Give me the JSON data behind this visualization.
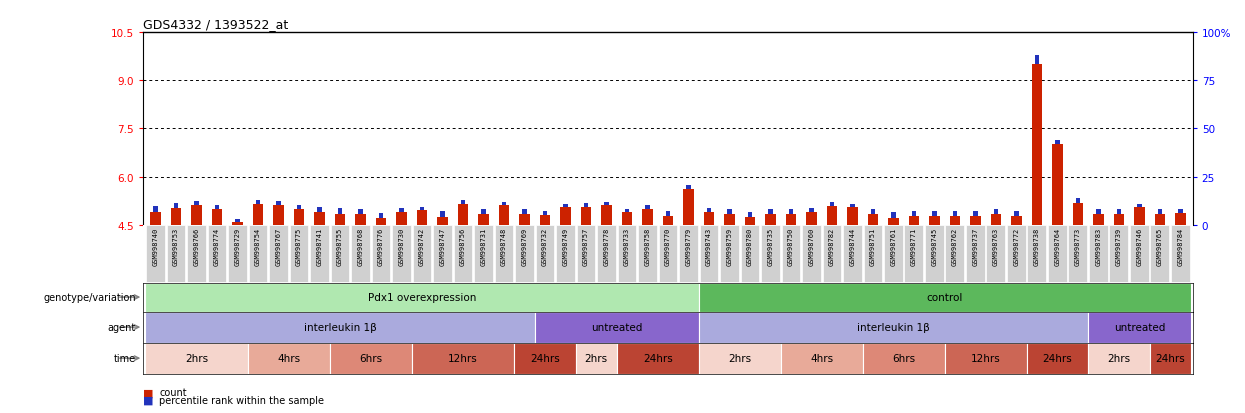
{
  "title": "GDS4332 / 1393522_at",
  "ylim_left": [
    4.5,
    10.5
  ],
  "yticks_left": [
    4.5,
    6.0,
    7.5,
    9.0,
    10.5
  ],
  "yticks_right": [
    0,
    25,
    50,
    75,
    100
  ],
  "bar_color_red": "#cc2200",
  "bar_color_blue": "#2233bb",
  "samples": [
    "GSM998740",
    "GSM998753",
    "GSM998766",
    "GSM998774",
    "GSM998729",
    "GSM998754",
    "GSM998767",
    "GSM998775",
    "GSM998741",
    "GSM998755",
    "GSM998768",
    "GSM998776",
    "GSM998730",
    "GSM998742",
    "GSM998747",
    "GSM998756",
    "GSM998731",
    "GSM998748",
    "GSM998769",
    "GSM998732",
    "GSM998749",
    "GSM998757",
    "GSM998778",
    "GSM998733",
    "GSM998758",
    "GSM998770",
    "GSM998779",
    "GSM998743",
    "GSM998759",
    "GSM998780",
    "GSM998735",
    "GSM998750",
    "GSM998760",
    "GSM998782",
    "GSM998744",
    "GSM998751",
    "GSM998761",
    "GSM998771",
    "GSM998745",
    "GSM998762",
    "GSM998737",
    "GSM998763",
    "GSM998772",
    "GSM998738",
    "GSM998764",
    "GSM998773",
    "GSM998783",
    "GSM998739",
    "GSM998746",
    "GSM998765",
    "GSM998784"
  ],
  "red_values": [
    4.88,
    5.02,
    5.1,
    4.98,
    4.58,
    5.15,
    5.12,
    5.0,
    4.88,
    4.84,
    4.82,
    4.7,
    4.88,
    4.95,
    4.74,
    5.15,
    4.82,
    5.1,
    4.82,
    4.8,
    5.05,
    5.05,
    5.1,
    4.88,
    4.98,
    4.78,
    5.6,
    4.88,
    4.82,
    4.74,
    4.82,
    4.82,
    4.88,
    5.08,
    5.05,
    4.82,
    4.72,
    4.78,
    4.78,
    4.78,
    4.78,
    4.82,
    4.78,
    9.5,
    7.0,
    5.18,
    4.82,
    4.82,
    5.05,
    4.82,
    4.85
  ],
  "blue_values": [
    5.08,
    5.18,
    5.25,
    5.12,
    4.68,
    5.28,
    5.25,
    5.12,
    5.05,
    5.02,
    4.98,
    4.85,
    5.02,
    5.05,
    4.92,
    5.28,
    4.98,
    5.22,
    4.98,
    4.92,
    5.15,
    5.18,
    5.2,
    4.98,
    5.1,
    4.92,
    5.72,
    5.02,
    4.98,
    4.88,
    4.98,
    4.98,
    5.02,
    5.2,
    5.15,
    4.98,
    4.88,
    4.92,
    4.92,
    4.92,
    4.92,
    4.98,
    4.92,
    9.78,
    7.15,
    5.32,
    4.98,
    4.98,
    5.15,
    4.98,
    5.0
  ],
  "genotype_groups": [
    {
      "label": "Pdx1 overexpression",
      "start": 0,
      "end": 27,
      "color": "#b0e8b0"
    },
    {
      "label": "control",
      "start": 27,
      "end": 51,
      "color": "#5cb85c"
    }
  ],
  "agent_groups": [
    {
      "label": "interleukin 1β",
      "start": 0,
      "end": 19,
      "color": "#aaaadd"
    },
    {
      "label": "untreated",
      "start": 19,
      "end": 27,
      "color": "#8866cc"
    },
    {
      "label": "interleukin 1β",
      "start": 27,
      "end": 46,
      "color": "#aaaadd"
    },
    {
      "label": "untreated",
      "start": 46,
      "end": 51,
      "color": "#8866cc"
    }
  ],
  "time_groups": [
    {
      "label": "2hrs",
      "start": 0,
      "end": 5,
      "color": "#f5d5cc"
    },
    {
      "label": "4hrs",
      "start": 5,
      "end": 9,
      "color": "#e8aa99"
    },
    {
      "label": "6hrs",
      "start": 9,
      "end": 13,
      "color": "#dd8877"
    },
    {
      "label": "12hrs",
      "start": 13,
      "end": 18,
      "color": "#cc6655"
    },
    {
      "label": "24hrs",
      "start": 18,
      "end": 21,
      "color": "#bb4433"
    },
    {
      "label": "2hrs",
      "start": 21,
      "end": 23,
      "color": "#f5d5cc"
    },
    {
      "label": "24hrs",
      "start": 23,
      "end": 27,
      "color": "#bb4433"
    },
    {
      "label": "2hrs",
      "start": 27,
      "end": 31,
      "color": "#f5d5cc"
    },
    {
      "label": "4hrs",
      "start": 31,
      "end": 35,
      "color": "#e8aa99"
    },
    {
      "label": "6hrs",
      "start": 35,
      "end": 39,
      "color": "#dd8877"
    },
    {
      "label": "12hrs",
      "start": 39,
      "end": 43,
      "color": "#cc6655"
    },
    {
      "label": "24hrs",
      "start": 43,
      "end": 46,
      "color": "#bb4433"
    },
    {
      "label": "2hrs",
      "start": 46,
      "end": 49,
      "color": "#f5d5cc"
    },
    {
      "label": "24hrs",
      "start": 49,
      "end": 51,
      "color": "#bb4433"
    }
  ],
  "row_labels": [
    "genotype/variation",
    "agent",
    "time"
  ],
  "legend": [
    {
      "label": "count",
      "color": "#cc2200"
    },
    {
      "label": "percentile rank within the sample",
      "color": "#2233bb"
    }
  ],
  "bg_color": "#ffffff",
  "tick_area_color": "#d8d8d8"
}
